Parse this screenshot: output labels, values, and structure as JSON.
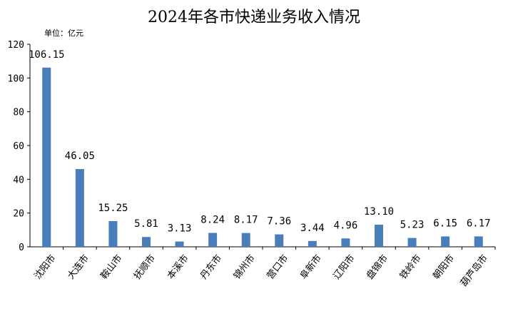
{
  "chart_data": {
    "type": "bar",
    "title": "2024年各市快递业务收入情况",
    "unit_label": "单位：亿元",
    "xlabel": "",
    "ylabel": "",
    "ylim": [
      0,
      120
    ],
    "yticks": [
      0,
      20,
      40,
      60,
      80,
      100,
      120
    ],
    "grid": false,
    "bar_color": "#4a7ebb",
    "categories": [
      "沈阳市",
      "大连市",
      "鞍山市",
      "抚顺市",
      "本溪市",
      "丹东市",
      "锦州市",
      "营口市",
      "阜新市",
      "辽阳市",
      "盘锦市",
      "铁岭市",
      "朝阳市",
      "葫芦岛市"
    ],
    "values": [
      106.15,
      46.05,
      15.25,
      5.81,
      3.13,
      8.24,
      8.17,
      7.36,
      3.44,
      4.96,
      13.1,
      5.23,
      6.15,
      6.17
    ],
    "value_labels": [
      "106.15",
      "46.05",
      "15.25",
      "5.81",
      "3.13",
      "8.24",
      "8.17",
      "7.36",
      "3.44",
      "4.96",
      "13.10",
      "5.23",
      "6.15",
      "6.17"
    ]
  }
}
